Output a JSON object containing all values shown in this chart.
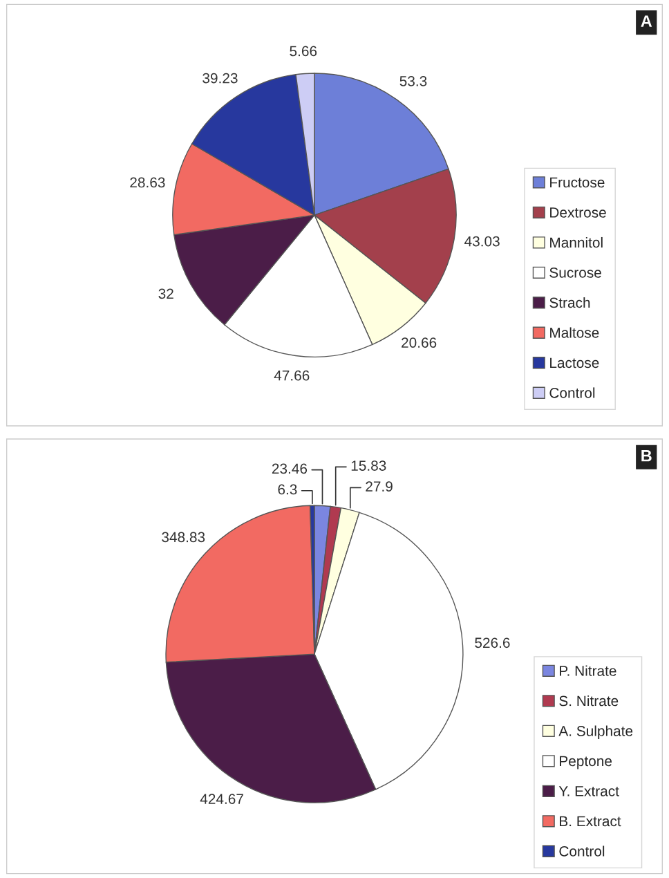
{
  "chart_data": [
    {
      "type": "pie",
      "title": "A",
      "categories": [
        "Fructose",
        "Dextrose",
        "Mannitol",
        "Sucrose",
        "Strach",
        "Maltose",
        "Lactose",
        "Control"
      ],
      "values": [
        53.3,
        43.03,
        20.66,
        47.66,
        32,
        28.63,
        39.23,
        5.66
      ],
      "colors": [
        "#6d7fd8",
        "#a3404c",
        "#ffffe0",
        "#ffffff",
        "#4b1d48",
        "#f26a62",
        "#27389e",
        "#cdcdf5"
      ],
      "data_labels": true,
      "legend": "right"
    },
    {
      "type": "pie",
      "title": "B",
      "categories": [
        "P. Nitrate",
        "S. Nitrate",
        "A. Sulphate",
        "Peptone",
        "Y. Extract",
        "B. Extract",
        "Control"
      ],
      "values": [
        23.46,
        15.83,
        27.9,
        526.6,
        424.67,
        348.83,
        6.3
      ],
      "colors": [
        "#7b86e0",
        "#b03a50",
        "#ffffe0",
        "#ffffff",
        "#4b1d48",
        "#f26a62",
        "#27389e"
      ],
      "data_labels": true,
      "legend": "right"
    }
  ]
}
